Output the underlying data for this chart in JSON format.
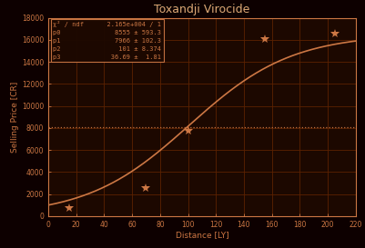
{
  "title": "Toxandji Virocide",
  "xlabel": "Distance [LY]",
  "ylabel": "Selling Price [CR]",
  "bg_color": "#0d0000",
  "plot_bg_color": "#1c0800",
  "grid_color": "#5c2200",
  "line_color": "#cc7744",
  "text_color": "#cc7744",
  "title_color": "#ddaa77",
  "xlim": [
    0,
    220
  ],
  "ylim": [
    0,
    18000
  ],
  "xticks": [
    0,
    20,
    40,
    60,
    80,
    100,
    120,
    140,
    160,
    180,
    200,
    220
  ],
  "yticks": [
    0,
    2000,
    4000,
    6000,
    8000,
    10000,
    12000,
    14000,
    16000,
    18000
  ],
  "data_points_x": [
    15,
    70,
    100,
    155,
    205
  ],
  "data_points_y": [
    700,
    2500,
    7700,
    16100,
    16600
  ],
  "p0": 8555,
  "p1": 7966,
  "p2": 101,
  "p3": 36.69,
  "hline_y": 8100,
  "legend_rows": [
    [
      "χ² / ndf",
      "2.165e+004 / 1"
    ],
    [
      "p0",
      "8555 ± 593.3"
    ],
    [
      "p1",
      "7966 ± 102.3"
    ],
    [
      "p2",
      "  101 ± 8.374"
    ],
    [
      "p3",
      "36.69 ±  1.81"
    ]
  ],
  "figsize": [
    4.02,
    2.73
  ],
  "dpi": 100
}
